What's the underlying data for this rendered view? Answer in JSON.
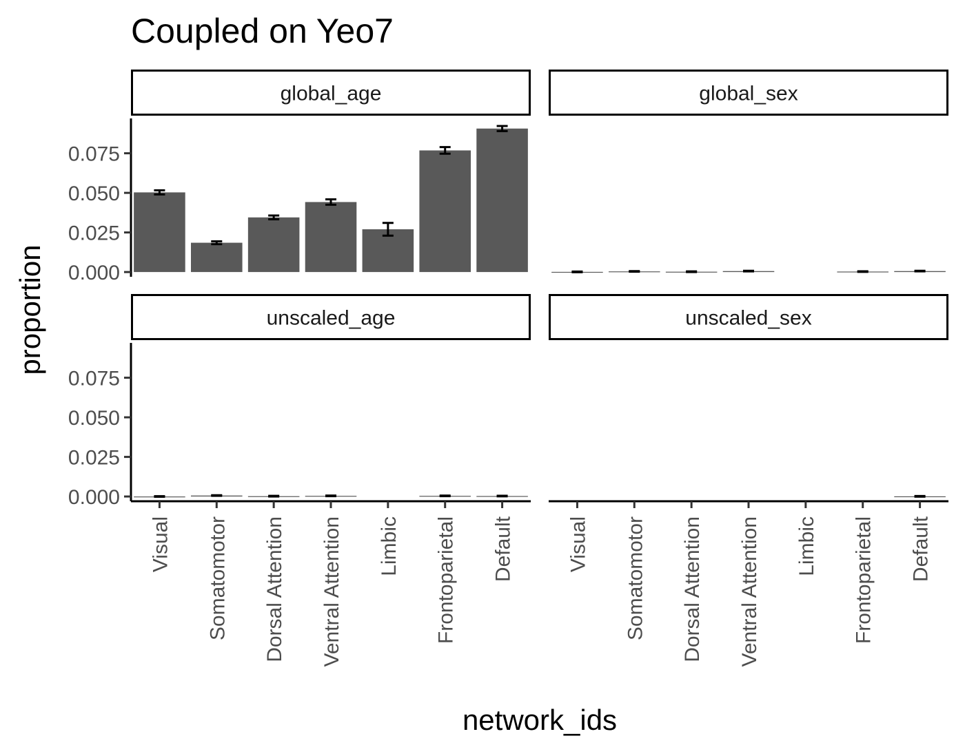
{
  "chart_data": {
    "type": "bar",
    "title": "Coupled on Yeo7",
    "xlabel": "network_ids",
    "ylabel": "proportion",
    "categories": [
      "Visual",
      "Somatomotor",
      "Dorsal Attention",
      "Ventral Attention",
      "Limbic",
      "Frontoparietal",
      "Default"
    ],
    "ylim": [
      -0.003,
      0.097
    ],
    "yticks": [
      0.0,
      0.025,
      0.05,
      0.075
    ],
    "ytick_labels": [
      "0.000",
      "0.025",
      "0.050",
      "0.075"
    ],
    "grid": false,
    "legend": "none",
    "facet_layout": "2x2",
    "bar_color": "#595959",
    "errorbar_color": "#000000",
    "panels": [
      {
        "name": "global_age",
        "values": [
          0.0503,
          0.0185,
          0.0345,
          0.0442,
          0.027,
          0.0768,
          0.0906
        ],
        "errors": [
          0.0013,
          0.0009,
          0.0012,
          0.0017,
          0.004,
          0.0021,
          0.0016
        ]
      },
      {
        "name": "global_sex",
        "values": [
          0.0001,
          0.0004,
          0.0002,
          0.0006,
          null,
          0.0003,
          0.0006
        ],
        "errors": [
          0.0002,
          0.0002,
          0.0002,
          0.0002,
          null,
          0.0002,
          0.0002
        ]
      },
      {
        "name": "unscaled_age",
        "values": [
          0.0,
          0.0006,
          0.0002,
          0.0004,
          null,
          0.0004,
          0.0003
        ],
        "errors": [
          0.0002,
          0.0002,
          0.0002,
          0.0002,
          null,
          0.0002,
          0.0002
        ]
      },
      {
        "name": "unscaled_sex",
        "values": [
          null,
          null,
          null,
          null,
          null,
          null,
          0.0001
        ],
        "errors": [
          null,
          null,
          null,
          null,
          null,
          null,
          0.0002
        ]
      }
    ]
  }
}
